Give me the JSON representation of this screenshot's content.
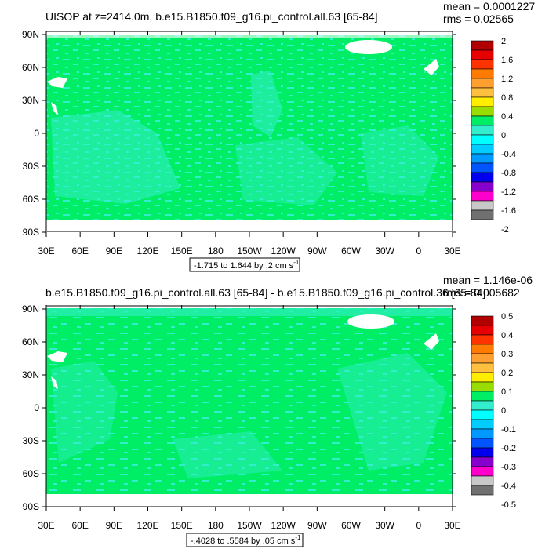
{
  "panels": [
    {
      "title": "UISOP at z=2414.0m, b.e15.B1850.f09_g16.pi_control.all.63 [65-84]",
      "stats": {
        "mean": "mean = 0.0001227",
        "rms": "rms = 0.02565"
      },
      "range_label": "-1.715 to 1.644 by .2 cm s",
      "range_sup": "-1",
      "colorbar_labels": [
        "2",
        "1.6",
        "1.2",
        "0.8",
        "0.4",
        "0",
        "-0.4",
        "-0.8",
        "-1.2",
        "-1.6",
        "-2"
      ]
    },
    {
      "title": "b.e15.B1850.f09_g16.pi_control.all.63 [65-84] - b.e15.B1850.f09_g16.pi_control.36 [65-84]",
      "stats": {
        "mean": "mean = 1.146e-06",
        "rms": "rms = 0.005682"
      },
      "range_label": "-.4028 to .5584 by .05 cm s",
      "range_sup": "-1",
      "colorbar_labels": [
        "0.5",
        "0.4",
        "0.3",
        "0.2",
        "0.1",
        "0",
        "-0.1",
        "-0.2",
        "-0.3",
        "-0.4",
        "-0.5"
      ]
    }
  ],
  "lat_labels": [
    "90N",
    "60N",
    "30N",
    "0",
    "30S",
    "60S",
    "90S"
  ],
  "lon_labels": [
    "30E",
    "60E",
    "90E",
    "120E",
    "150E",
    "180",
    "150W",
    "120W",
    "90W",
    "60W",
    "30W",
    "0",
    "30E"
  ],
  "colors": {
    "land_green": "#00ee66",
    "ocean_cyan": "#33eecc",
    "colorbar": [
      "#b00000",
      "#e60000",
      "#ff3300",
      "#ff7a00",
      "#ff9f30",
      "#ffc040",
      "#ffee00",
      "#99dd00",
      "#00ee66",
      "#33eecc",
      "#00ffff",
      "#00ccff",
      "#0099ff",
      "#0055ff",
      "#0000ee",
      "#8800cc",
      "#ff00cc",
      "#c8c8c8",
      "#707070"
    ]
  }
}
